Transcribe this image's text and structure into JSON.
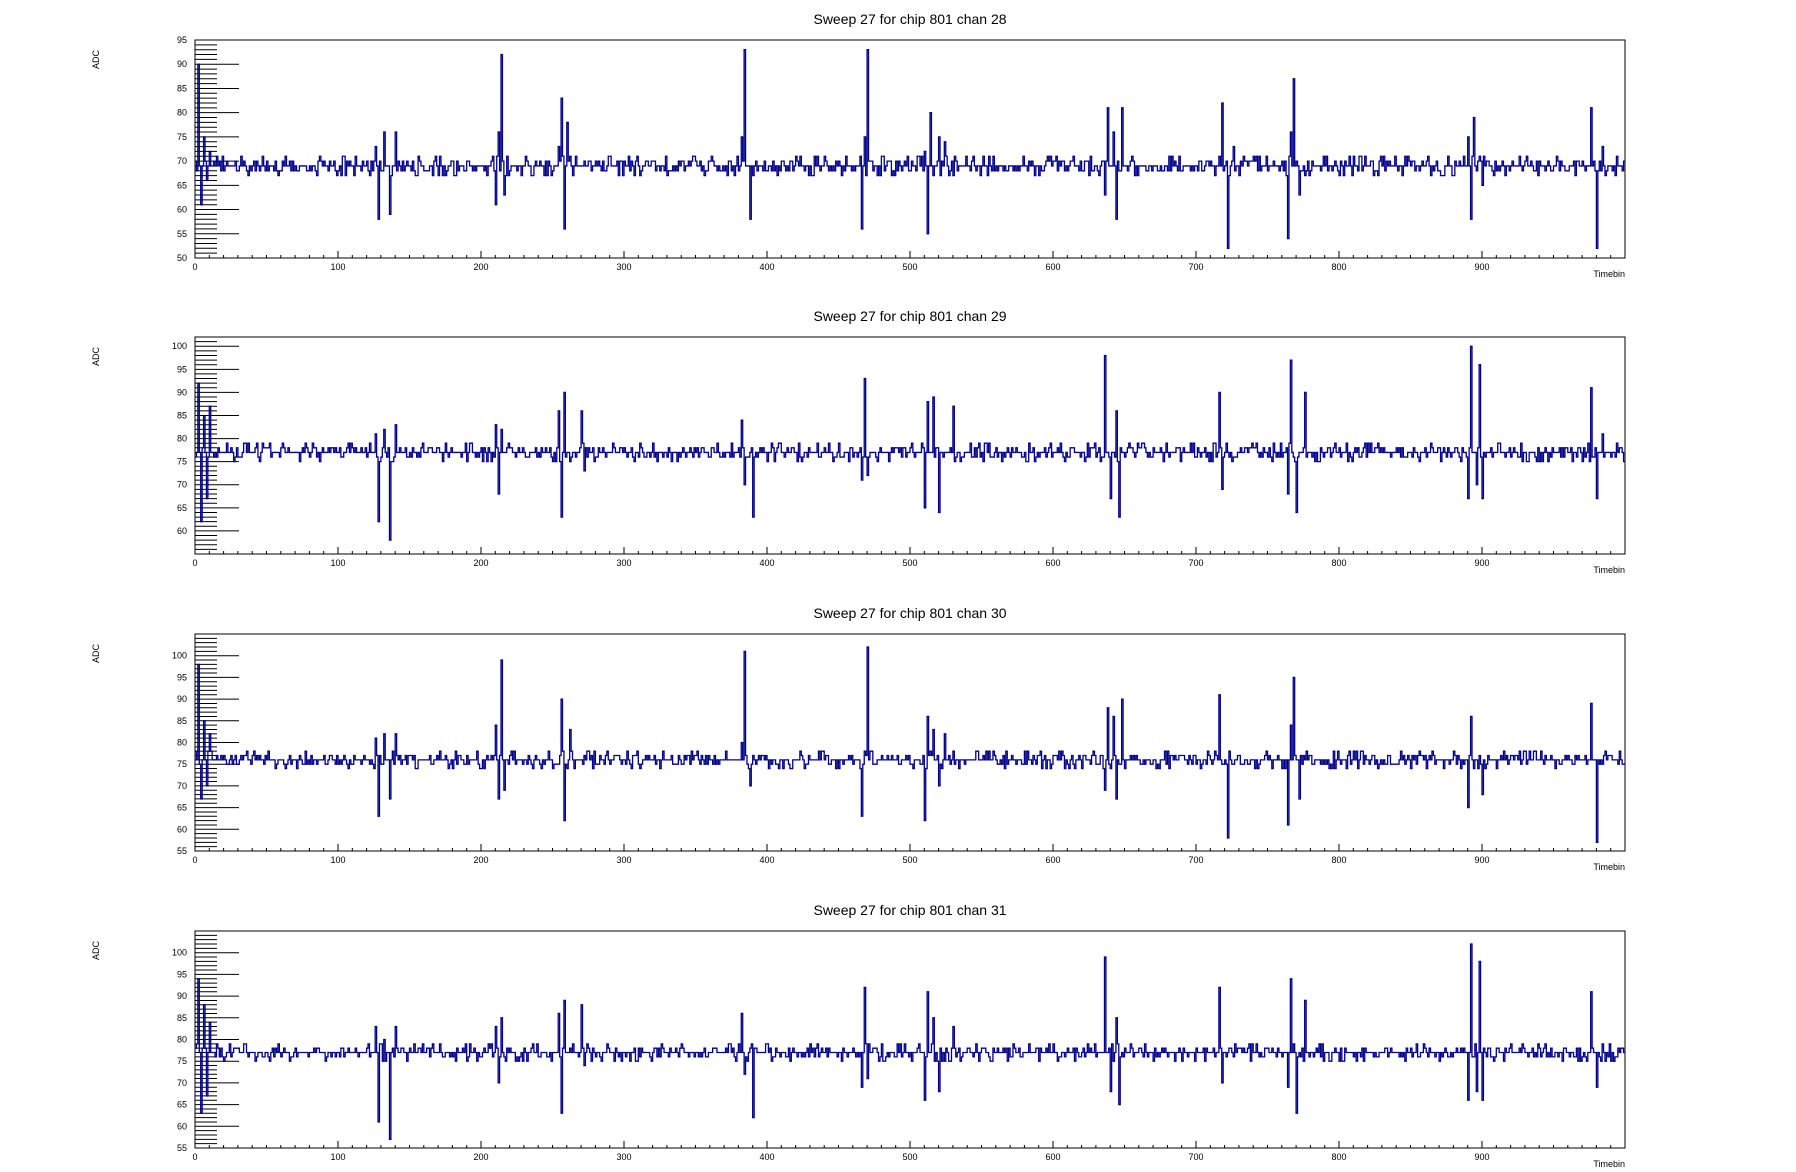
{
  "chart_data": [
    {
      "type": "line",
      "title": "Sweep 27 for chip 801 chan 28",
      "xlabel": "Timebin",
      "ylabel": "ADC",
      "xlim": [
        0,
        1000
      ],
      "ylim": [
        50,
        95
      ],
      "xticks": [
        0,
        100,
        200,
        300,
        400,
        500,
        600,
        700,
        800,
        900
      ],
      "yticks": [
        50,
        55,
        60,
        65,
        70,
        75,
        80,
        85,
        90,
        95
      ],
      "baseline": 69,
      "line_color": "#00008b",
      "spikes": [
        [
          2,
          90
        ],
        [
          4,
          61
        ],
        [
          6,
          75
        ],
        [
          8,
          66
        ],
        [
          10,
          72
        ],
        [
          126,
          73
        ],
        [
          128,
          58
        ],
        [
          132,
          76
        ],
        [
          136,
          59
        ],
        [
          140,
          76
        ],
        [
          210,
          61
        ],
        [
          212,
          76
        ],
        [
          214,
          92
        ],
        [
          216,
          63
        ],
        [
          254,
          73
        ],
        [
          256,
          83
        ],
        [
          258,
          56
        ],
        [
          260,
          78
        ],
        [
          382,
          75
        ],
        [
          384,
          93
        ],
        [
          388,
          58
        ],
        [
          466,
          56
        ],
        [
          468,
          75
        ],
        [
          470,
          93
        ],
        [
          510,
          72
        ],
        [
          512,
          55
        ],
        [
          514,
          80
        ],
        [
          520,
          75
        ],
        [
          524,
          74
        ],
        [
          636,
          63
        ],
        [
          638,
          81
        ],
        [
          642,
          76
        ],
        [
          644,
          58
        ],
        [
          648,
          81
        ],
        [
          718,
          82
        ],
        [
          722,
          52
        ],
        [
          726,
          73
        ],
        [
          764,
          54
        ],
        [
          766,
          76
        ],
        [
          768,
          87
        ],
        [
          772,
          63
        ],
        [
          890,
          75
        ],
        [
          892,
          58
        ],
        [
          894,
          79
        ],
        [
          900,
          65
        ],
        [
          976,
          81
        ],
        [
          980,
          52
        ],
        [
          984,
          73
        ]
      ]
    },
    {
      "type": "line",
      "title": "Sweep 27 for chip 801 chan 29",
      "xlabel": "Timebin",
      "ylabel": "ADC",
      "xlim": [
        0,
        1000
      ],
      "ylim": [
        55,
        102
      ],
      "xticks": [
        0,
        100,
        200,
        300,
        400,
        500,
        600,
        700,
        800,
        900
      ],
      "yticks": [
        60,
        65,
        70,
        75,
        80,
        85,
        90,
        95,
        100
      ],
      "baseline": 77,
      "line_color": "#00008b",
      "spikes": [
        [
          2,
          92
        ],
        [
          4,
          62
        ],
        [
          6,
          85
        ],
        [
          8,
          67
        ],
        [
          10,
          87
        ],
        [
          126,
          81
        ],
        [
          128,
          62
        ],
        [
          132,
          82
        ],
        [
          136,
          58
        ],
        [
          140,
          83
        ],
        [
          210,
          83
        ],
        [
          212,
          68
        ],
        [
          214,
          82
        ],
        [
          254,
          86
        ],
        [
          256,
          63
        ],
        [
          258,
          90
        ],
        [
          270,
          86
        ],
        [
          272,
          73
        ],
        [
          382,
          84
        ],
        [
          384,
          70
        ],
        [
          390,
          63
        ],
        [
          466,
          71
        ],
        [
          468,
          93
        ],
        [
          470,
          72
        ],
        [
          510,
          65
        ],
        [
          512,
          88
        ],
        [
          516,
          89
        ],
        [
          520,
          64
        ],
        [
          530,
          87
        ],
        [
          636,
          98
        ],
        [
          640,
          67
        ],
        [
          644,
          86
        ],
        [
          646,
          63
        ],
        [
          716,
          90
        ],
        [
          718,
          69
        ],
        [
          764,
          68
        ],
        [
          766,
          97
        ],
        [
          770,
          64
        ],
        [
          776,
          90
        ],
        [
          890,
          67
        ],
        [
          892,
          100
        ],
        [
          896,
          70
        ],
        [
          898,
          96
        ],
        [
          900,
          67
        ],
        [
          976,
          91
        ],
        [
          980,
          67
        ],
        [
          984,
          81
        ]
      ]
    },
    {
      "type": "line",
      "title": "Sweep 27 for chip 801 chan 30",
      "xlabel": "Timebin",
      "ylabel": "ADC",
      "xlim": [
        0,
        1000
      ],
      "ylim": [
        55,
        105
      ],
      "xticks": [
        0,
        100,
        200,
        300,
        400,
        500,
        600,
        700,
        800,
        900
      ],
      "yticks": [
        55,
        60,
        65,
        70,
        75,
        80,
        85,
        90,
        95,
        100
      ],
      "baseline": 76,
      "line_color": "#00008b",
      "spikes": [
        [
          2,
          98
        ],
        [
          4,
          67
        ],
        [
          6,
          85
        ],
        [
          8,
          70
        ],
        [
          10,
          82
        ],
        [
          126,
          81
        ],
        [
          128,
          63
        ],
        [
          132,
          82
        ],
        [
          136,
          67
        ],
        [
          140,
          82
        ],
        [
          210,
          84
        ],
        [
          212,
          67
        ],
        [
          214,
          99
        ],
        [
          216,
          69
        ],
        [
          254,
          75
        ],
        [
          256,
          90
        ],
        [
          258,
          62
        ],
        [
          262,
          83
        ],
        [
          382,
          80
        ],
        [
          384,
          101
        ],
        [
          388,
          70
        ],
        [
          466,
          63
        ],
        [
          468,
          78
        ],
        [
          470,
          102
        ],
        [
          510,
          62
        ],
        [
          512,
          86
        ],
        [
          516,
          83
        ],
        [
          520,
          70
        ],
        [
          524,
          82
        ],
        [
          636,
          69
        ],
        [
          638,
          88
        ],
        [
          642,
          86
        ],
        [
          644,
          67
        ],
        [
          648,
          90
        ],
        [
          716,
          91
        ],
        [
          722,
          58
        ],
        [
          726,
          75
        ],
        [
          764,
          61
        ],
        [
          766,
          84
        ],
        [
          768,
          95
        ],
        [
          772,
          67
        ],
        [
          890,
          65
        ],
        [
          892,
          86
        ],
        [
          896,
          76
        ],
        [
          900,
          68
        ],
        [
          976,
          89
        ],
        [
          980,
          57
        ],
        [
          984,
          75
        ]
      ]
    },
    {
      "type": "line",
      "title": "Sweep 27 for chip 801 chan 31",
      "xlabel": "Timebin",
      "ylabel": "ADC",
      "xlim": [
        0,
        1000
      ],
      "ylim": [
        55,
        105
      ],
      "xticks": [
        0,
        100,
        200,
        300,
        400,
        500,
        600,
        700,
        800,
        900
      ],
      "yticks": [
        55,
        60,
        65,
        70,
        75,
        80,
        85,
        90,
        95,
        100
      ],
      "baseline": 77,
      "line_color": "#00008b",
      "spikes": [
        [
          2,
          94
        ],
        [
          4,
          63
        ],
        [
          6,
          88
        ],
        [
          8,
          67
        ],
        [
          10,
          84
        ],
        [
          126,
          83
        ],
        [
          128,
          61
        ],
        [
          132,
          80
        ],
        [
          136,
          57
        ],
        [
          140,
          83
        ],
        [
          210,
          83
        ],
        [
          212,
          70
        ],
        [
          214,
          85
        ],
        [
          254,
          86
        ],
        [
          256,
          63
        ],
        [
          258,
          89
        ],
        [
          270,
          88
        ],
        [
          272,
          74
        ],
        [
          382,
          86
        ],
        [
          384,
          72
        ],
        [
          390,
          62
        ],
        [
          466,
          69
        ],
        [
          468,
          92
        ],
        [
          470,
          71
        ],
        [
          510,
          66
        ],
        [
          512,
          91
        ],
        [
          516,
          85
        ],
        [
          520,
          68
        ],
        [
          530,
          83
        ],
        [
          636,
          99
        ],
        [
          640,
          68
        ],
        [
          644,
          85
        ],
        [
          646,
          65
        ],
        [
          716,
          92
        ],
        [
          718,
          70
        ],
        [
          764,
          69
        ],
        [
          766,
          94
        ],
        [
          770,
          63
        ],
        [
          776,
          89
        ],
        [
          890,
          66
        ],
        [
          892,
          102
        ],
        [
          896,
          68
        ],
        [
          898,
          98
        ],
        [
          900,
          66
        ],
        [
          976,
          91
        ],
        [
          980,
          69
        ],
        [
          984,
          79
        ]
      ]
    }
  ]
}
